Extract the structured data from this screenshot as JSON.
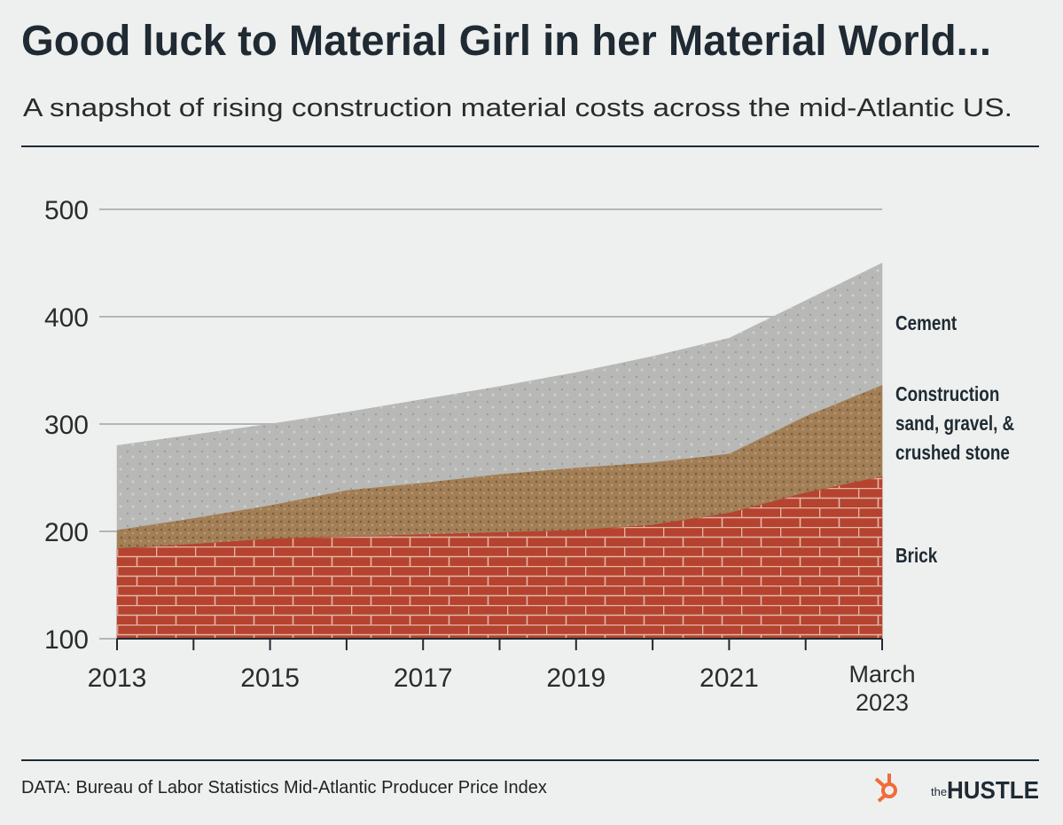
{
  "chart_data": {
    "type": "area",
    "title": "Good luck to Material Girl in her Material World...",
    "subtitle": "A snapshot of rising construction material costs across the mid-Atlantic US.",
    "source": "DATA: Bureau of Labor Statistics Mid-Atlantic Producer Price Index",
    "brand": {
      "pre": "the",
      "name": "HUSTLE"
    },
    "x": [
      2013,
      2014,
      2015,
      2016,
      2017,
      2018,
      2019,
      2020,
      2021,
      2022,
      2023
    ],
    "xlim": [
      2013,
      2023
    ],
    "xticks": [
      2013,
      2014,
      2015,
      2016,
      2017,
      2018,
      2019,
      2020,
      2021,
      2022,
      {
        "value": 2023,
        "label": "March 2023"
      }
    ],
    "xtick_labels_shown": [
      2013,
      2015,
      2017,
      2019,
      2021,
      2023
    ],
    "ylim": [
      100,
      500
    ],
    "yticks": [
      100,
      200,
      300,
      400,
      500
    ],
    "grid": true,
    "series": [
      {
        "name": "Cement",
        "color": "#b8b9b6",
        "values": [
          280,
          290,
          300,
          311,
          323,
          335,
          348,
          363,
          380,
          415,
          450
        ]
      },
      {
        "name": "Construction sand, gravel, & crushed stone",
        "color": "#a27f57",
        "values": [
          201,
          212,
          224,
          238,
          245,
          253,
          259,
          264,
          272,
          307,
          336
        ]
      },
      {
        "name": "Brick",
        "color": "#b5432f",
        "values": [
          184,
          188,
          193,
          195,
          197,
          199,
          201,
          206,
          217,
          236,
          251
        ]
      }
    ]
  }
}
